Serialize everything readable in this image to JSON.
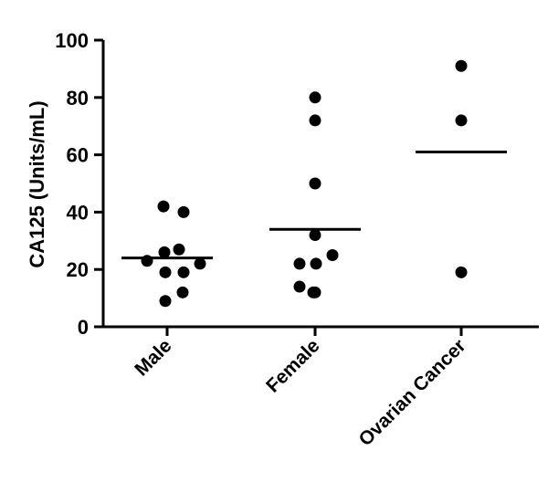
{
  "chart_data": {
    "type": "scatter",
    "title": "",
    "xlabel": "",
    "ylabel": "CA125 (Units/mL)",
    "ylim": [
      0,
      100
    ],
    "yticks": [
      0,
      20,
      40,
      60,
      80,
      100
    ],
    "categories": [
      "Male",
      "Female",
      "Ovarian Cancer"
    ],
    "grid": false,
    "mean_line": true,
    "series": [
      {
        "category": "Male",
        "values": [
          42,
          40,
          27,
          26,
          23,
          22,
          19,
          19,
          12,
          9
        ],
        "mean": 24
      },
      {
        "category": "Female",
        "values": [
          80,
          72,
          50,
          32,
          25,
          22,
          22,
          14,
          12,
          12
        ],
        "mean": 34
      },
      {
        "category": "Ovarian Cancer",
        "values": [
          91,
          72,
          19
        ],
        "mean": 61
      }
    ]
  }
}
